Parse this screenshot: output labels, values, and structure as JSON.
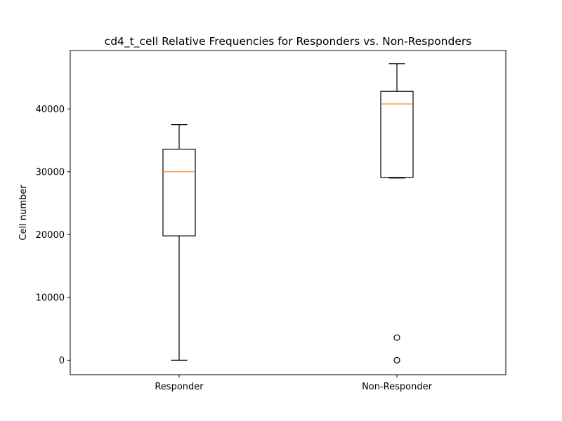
{
  "chart_data": {
    "type": "box",
    "title": "cd4_t_cell Relative Frequencies for Responders vs. Non-Responders",
    "xlabel": "",
    "ylabel": "Cell number",
    "ylim": [
      -2300,
      49300
    ],
    "yticks": [
      0,
      10000,
      20000,
      30000,
      40000
    ],
    "yticklabels": [
      "0",
      "10000",
      "20000",
      "30000",
      "40000"
    ],
    "grid": false,
    "categories": [
      "Responder",
      "Non-Responder"
    ],
    "boxes": [
      {
        "category": "Responder",
        "whisker_low": 0,
        "q1": 19800,
        "median": 30000,
        "q3": 33600,
        "whisker_high": 37500,
        "outliers": []
      },
      {
        "category": "Non-Responder",
        "whisker_low": 29000,
        "q1": 29100,
        "median": 40800,
        "q3": 42800,
        "whisker_high": 47200,
        "outliers": [
          3600,
          0
        ]
      }
    ],
    "colors": {
      "box": "#000000",
      "median": "#ff7f0e",
      "whisker": "#000000",
      "flier": "#000000"
    }
  }
}
